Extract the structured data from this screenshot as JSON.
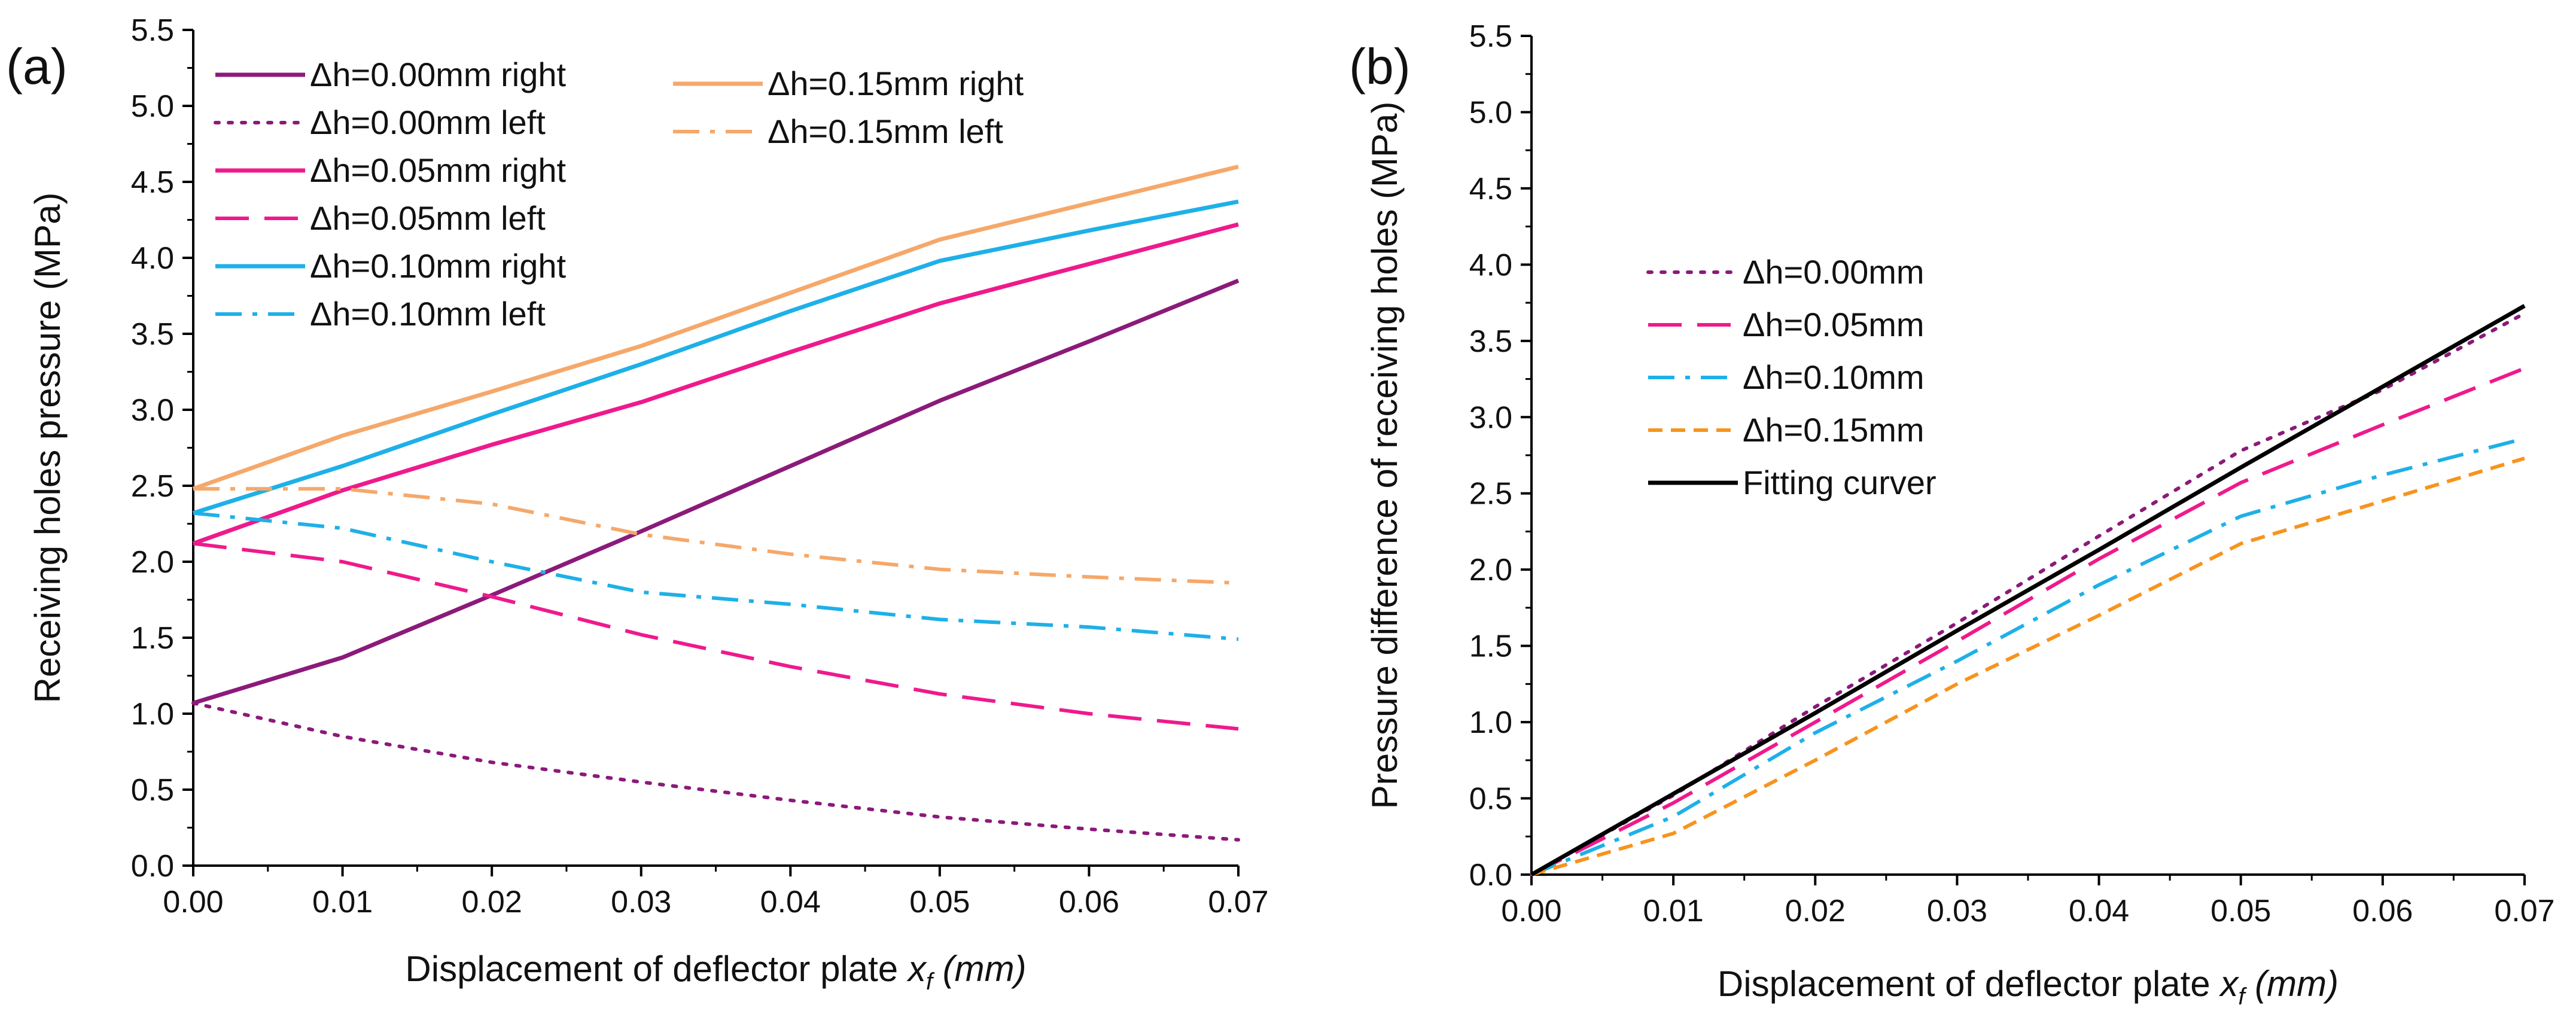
{
  "chart_data": [
    {
      "panel_label": "(a)",
      "type": "line",
      "xlabel": "Displacement of deflector plate ",
      "xlabel_var": "x",
      "xlabel_sub": "f",
      "xlabel_unit": "(mm)",
      "ylabel": "Receiving holes pressure (MPa)",
      "xlim": [
        0,
        0.07
      ],
      "ylim": [
        0,
        5.5
      ],
      "x_ticks": [
        "0.00",
        "0.01",
        "0.02",
        "0.03",
        "0.04",
        "0.05",
        "0.06",
        "0.07"
      ],
      "y_ticks": [
        "0.0",
        "0.5",
        "1.0",
        "1.5",
        "2.0",
        "2.5",
        "3.0",
        "3.5",
        "4.0",
        "4.5",
        "5.0",
        "5.5"
      ],
      "x": [
        0,
        0.01,
        0.02,
        0.03,
        0.04,
        0.05,
        0.06,
        0.07
      ],
      "series": [
        {
          "name": "Δh=0.00mm right",
          "color": "#8b1a7a",
          "dash": "solid",
          "values": [
            1.07,
            1.37,
            1.78,
            2.2,
            2.63,
            3.06,
            3.45,
            3.85
          ]
        },
        {
          "name": "Δh=0.00mm left",
          "color": "#8b1a7a",
          "dash": "dot",
          "values": [
            1.07,
            0.85,
            0.68,
            0.55,
            0.43,
            0.32,
            0.24,
            0.17
          ]
        },
        {
          "name": "Δh=0.05mm right",
          "color": "#ee1a8c",
          "dash": "solid",
          "values": [
            2.12,
            2.47,
            2.77,
            3.05,
            3.38,
            3.7,
            3.96,
            4.22
          ]
        },
        {
          "name": "Δh=0.05mm left",
          "color": "#ee1a8c",
          "dash": "dash",
          "values": [
            2.12,
            2.0,
            1.77,
            1.52,
            1.31,
            1.13,
            1.0,
            0.9
          ]
        },
        {
          "name": "Δh=0.10mm right",
          "color": "#1eb0e8",
          "dash": "solid",
          "values": [
            2.32,
            2.63,
            2.97,
            3.3,
            3.65,
            3.98,
            4.18,
            4.37
          ]
        },
        {
          "name": "Δh=0.10mm left",
          "color": "#1eb0e8",
          "dash": "dashdot",
          "values": [
            2.32,
            2.22,
            2.0,
            1.8,
            1.72,
            1.62,
            1.57,
            1.49
          ]
        },
        {
          "name": "Δh=0.15mm right",
          "color": "#f5a86a",
          "dash": "solid",
          "values": [
            2.48,
            2.83,
            3.12,
            3.42,
            3.77,
            4.12,
            4.36,
            4.6
          ]
        },
        {
          "name": "Δh=0.15mm left",
          "color": "#f5a86a",
          "dash": "dashdot",
          "values": [
            2.48,
            2.48,
            2.38,
            2.18,
            2.05,
            1.95,
            1.9,
            1.86
          ]
        }
      ],
      "legend_placement": "top-left, two columns"
    },
    {
      "panel_label": "(b)",
      "type": "line",
      "xlabel": "Displacement of deflector plate ",
      "xlabel_var": "x",
      "xlabel_sub": "f",
      "xlabel_unit": "(mm)",
      "ylabel": "Pressure difference of receiving holes (MPa)",
      "xlim": [
        0,
        0.07
      ],
      "ylim": [
        0,
        5.5
      ],
      "x_ticks": [
        "0.00",
        "0.01",
        "0.02",
        "0.03",
        "0.04",
        "0.05",
        "0.06",
        "0.07"
      ],
      "y_ticks": [
        "0.0",
        "0.5",
        "1.0",
        "1.5",
        "2.0",
        "2.5",
        "3.0",
        "3.5",
        "4.0",
        "4.5",
        "5.0",
        "5.5"
      ],
      "x": [
        0,
        0.01,
        0.02,
        0.03,
        0.04,
        0.05,
        0.06,
        0.07
      ],
      "series": [
        {
          "name": "Δh=0.00mm",
          "color": "#8b1a7a",
          "dash": "dot",
          "values": [
            0.0,
            0.52,
            1.1,
            1.65,
            2.22,
            2.78,
            3.18,
            3.68
          ]
        },
        {
          "name": "Δh=0.05mm",
          "color": "#ee1a8c",
          "dash": "dash",
          "values": [
            0.0,
            0.47,
            1.0,
            1.53,
            2.07,
            2.57,
            2.95,
            3.32
          ]
        },
        {
          "name": "Δh=0.10mm",
          "color": "#1eb0e8",
          "dash": "dashdot",
          "values": [
            0.0,
            0.38,
            0.93,
            1.4,
            1.9,
            2.35,
            2.62,
            2.86
          ]
        },
        {
          "name": "Δh=0.15mm",
          "color": "#f7941d",
          "dash": "shortdash",
          "values": [
            0.0,
            0.27,
            0.75,
            1.25,
            1.7,
            2.17,
            2.45,
            2.73
          ]
        },
        {
          "name": "Fitting curver",
          "color": "#000000",
          "dash": "solid",
          "values": [
            0.0,
            0.53,
            1.06,
            1.6,
            2.13,
            2.67,
            3.2,
            3.73
          ]
        }
      ],
      "legend_placement": "middle-left"
    }
  ]
}
